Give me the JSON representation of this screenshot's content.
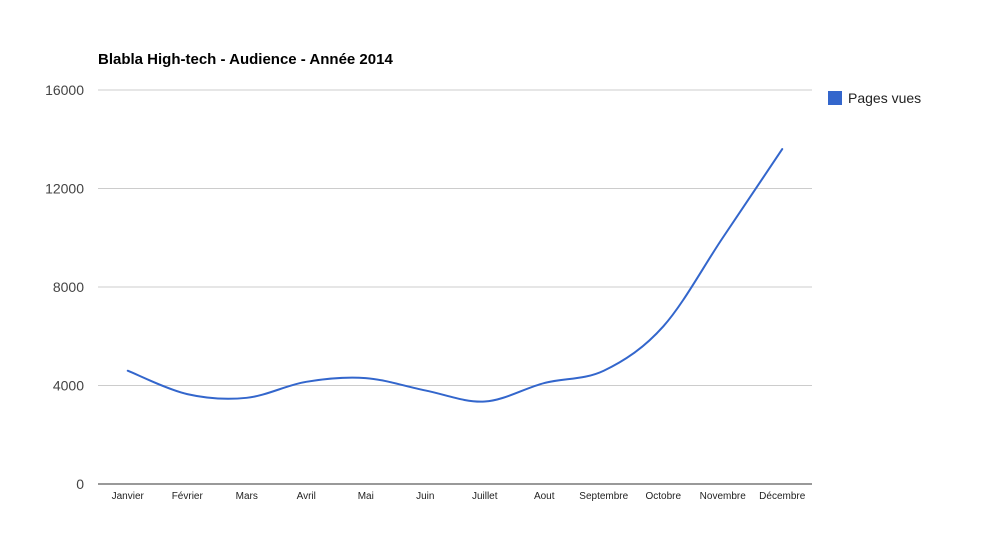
{
  "chart_data": {
    "type": "line",
    "title": "Blabla High-tech - Audience - Année 2014",
    "xlabel": "",
    "ylabel": "",
    "categories": [
      "Janvier",
      "Février",
      "Mars",
      "Avril",
      "Mai",
      "Juin",
      "Juillet",
      "Aout",
      "Septembre",
      "Octobre",
      "Novembre",
      "Décembre"
    ],
    "series": [
      {
        "name": "Pages vues",
        "color": "#3366cc",
        "values": [
          4600,
          3650,
          3500,
          4150,
          4300,
          3800,
          3350,
          4100,
          4600,
          6400,
          10000,
          13600
        ]
      }
    ],
    "ylim": [
      0,
      16000
    ],
    "yticks": [
      "0",
      "4000",
      "8000",
      "12000",
      "16000"
    ],
    "grid": true,
    "legend": "right",
    "curve": "smooth"
  }
}
